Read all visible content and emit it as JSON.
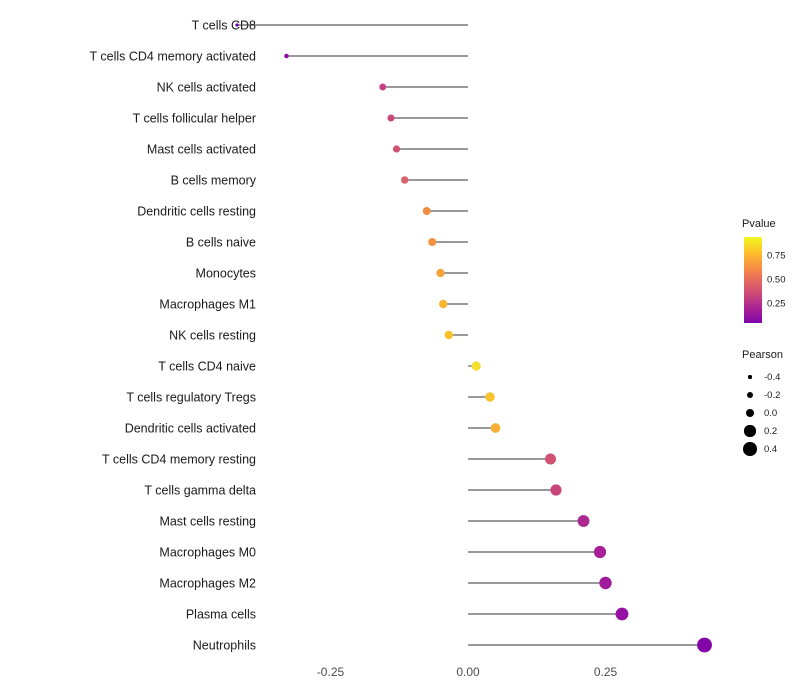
{
  "figure": {
    "background": "#ffffff",
    "text_color": "#1a1a1a",
    "axis_text_color": "#4d4d4d"
  },
  "chart_data": {
    "type": "lollipop",
    "title": "",
    "xlabel": "",
    "ylabel": "",
    "xlim": [
      -0.47,
      0.47
    ],
    "grid": false,
    "stem_color": "#333333",
    "x_ticks": [
      {
        "value": -0.25,
        "label": "-0.25"
      },
      {
        "value": 0.0,
        "label": "0.00"
      },
      {
        "value": 0.25,
        "label": "0.25"
      }
    ],
    "items": [
      {
        "label": "T cells CD8",
        "pearson": -0.42,
        "pvalue": 0.03,
        "color": "#7000A8"
      },
      {
        "label": "T cells CD4 memory activated",
        "pearson": -0.33,
        "pvalue": 0.1,
        "color": "#8A09A5"
      },
      {
        "label": "NK cells activated",
        "pearson": -0.155,
        "pvalue": 0.45,
        "color": "#C5407E"
      },
      {
        "label": "T cells follicular helper",
        "pearson": -0.14,
        "pvalue": 0.5,
        "color": "#CC4778"
      },
      {
        "label": "Mast cells activated",
        "pearson": -0.13,
        "pvalue": 0.52,
        "color": "#D05270"
      },
      {
        "label": "B cells memory",
        "pearson": -0.115,
        "pvalue": 0.57,
        "color": "#D8616B"
      },
      {
        "label": "Dendritic cells resting",
        "pearson": -0.075,
        "pvalue": 0.7,
        "color": "#EF8E41"
      },
      {
        "label": "B cells naive",
        "pearson": -0.065,
        "pvalue": 0.72,
        "color": "#F29342"
      },
      {
        "label": "Monocytes",
        "pearson": -0.05,
        "pvalue": 0.78,
        "color": "#F5A43B"
      },
      {
        "label": "Macrophages M1",
        "pearson": -0.045,
        "pvalue": 0.82,
        "color": "#F7B62E"
      },
      {
        "label": "NK cells resting",
        "pearson": -0.035,
        "pvalue": 0.85,
        "color": "#F9C22A"
      },
      {
        "label": "T cells CD4 naive",
        "pearson": 0.015,
        "pvalue": 0.92,
        "color": "#F4E02C"
      },
      {
        "label": "T cells regulatory  Tregs",
        "pearson": 0.04,
        "pvalue": 0.86,
        "color": "#F8C32C"
      },
      {
        "label": "Dendritic cells activated",
        "pearson": 0.05,
        "pvalue": 0.8,
        "color": "#F7AF34"
      },
      {
        "label": "T cells CD4 memory resting",
        "pearson": 0.15,
        "pvalue": 0.48,
        "color": "#D15173"
      },
      {
        "label": "T cells gamma delta",
        "pearson": 0.16,
        "pvalue": 0.45,
        "color": "#C9467B"
      },
      {
        "label": "Mast cells resting",
        "pearson": 0.21,
        "pvalue": 0.3,
        "color": "#AE2892"
      },
      {
        "label": "Macrophages M0",
        "pearson": 0.24,
        "pvalue": 0.25,
        "color": "#A62098"
      },
      {
        "label": "Macrophages M2",
        "pearson": 0.25,
        "pvalue": 0.22,
        "color": "#A01A9C"
      },
      {
        "label": "Plasma cells",
        "pearson": 0.28,
        "pvalue": 0.15,
        "color": "#9511A1"
      },
      {
        "label": "Neutrophils",
        "pearson": 0.43,
        "pvalue": 0.05,
        "color": "#8305A7"
      }
    ]
  },
  "legend": {
    "pvalue": {
      "title": "Pvalue",
      "gradient_colors": [
        "#F0F921",
        "#FDC328",
        "#F89441",
        "#E56B5D",
        "#CC4778",
        "#A82296",
        "#7F03A8"
      ],
      "ticks": [
        {
          "label": "0.75",
          "pos": 0.22
        },
        {
          "label": "0.50",
          "pos": 0.5
        },
        {
          "label": "0.25",
          "pos": 0.78
        }
      ]
    },
    "pearson": {
      "title": "Pearson",
      "sizes": [
        {
          "label": "-0.4",
          "r": 1.6
        },
        {
          "label": "-0.2",
          "r": 3.0
        },
        {
          "label": "0.0",
          "r": 4.4
        },
        {
          "label": "0.2",
          "r": 5.6
        },
        {
          "label": "0.4",
          "r": 6.8
        }
      ]
    }
  }
}
